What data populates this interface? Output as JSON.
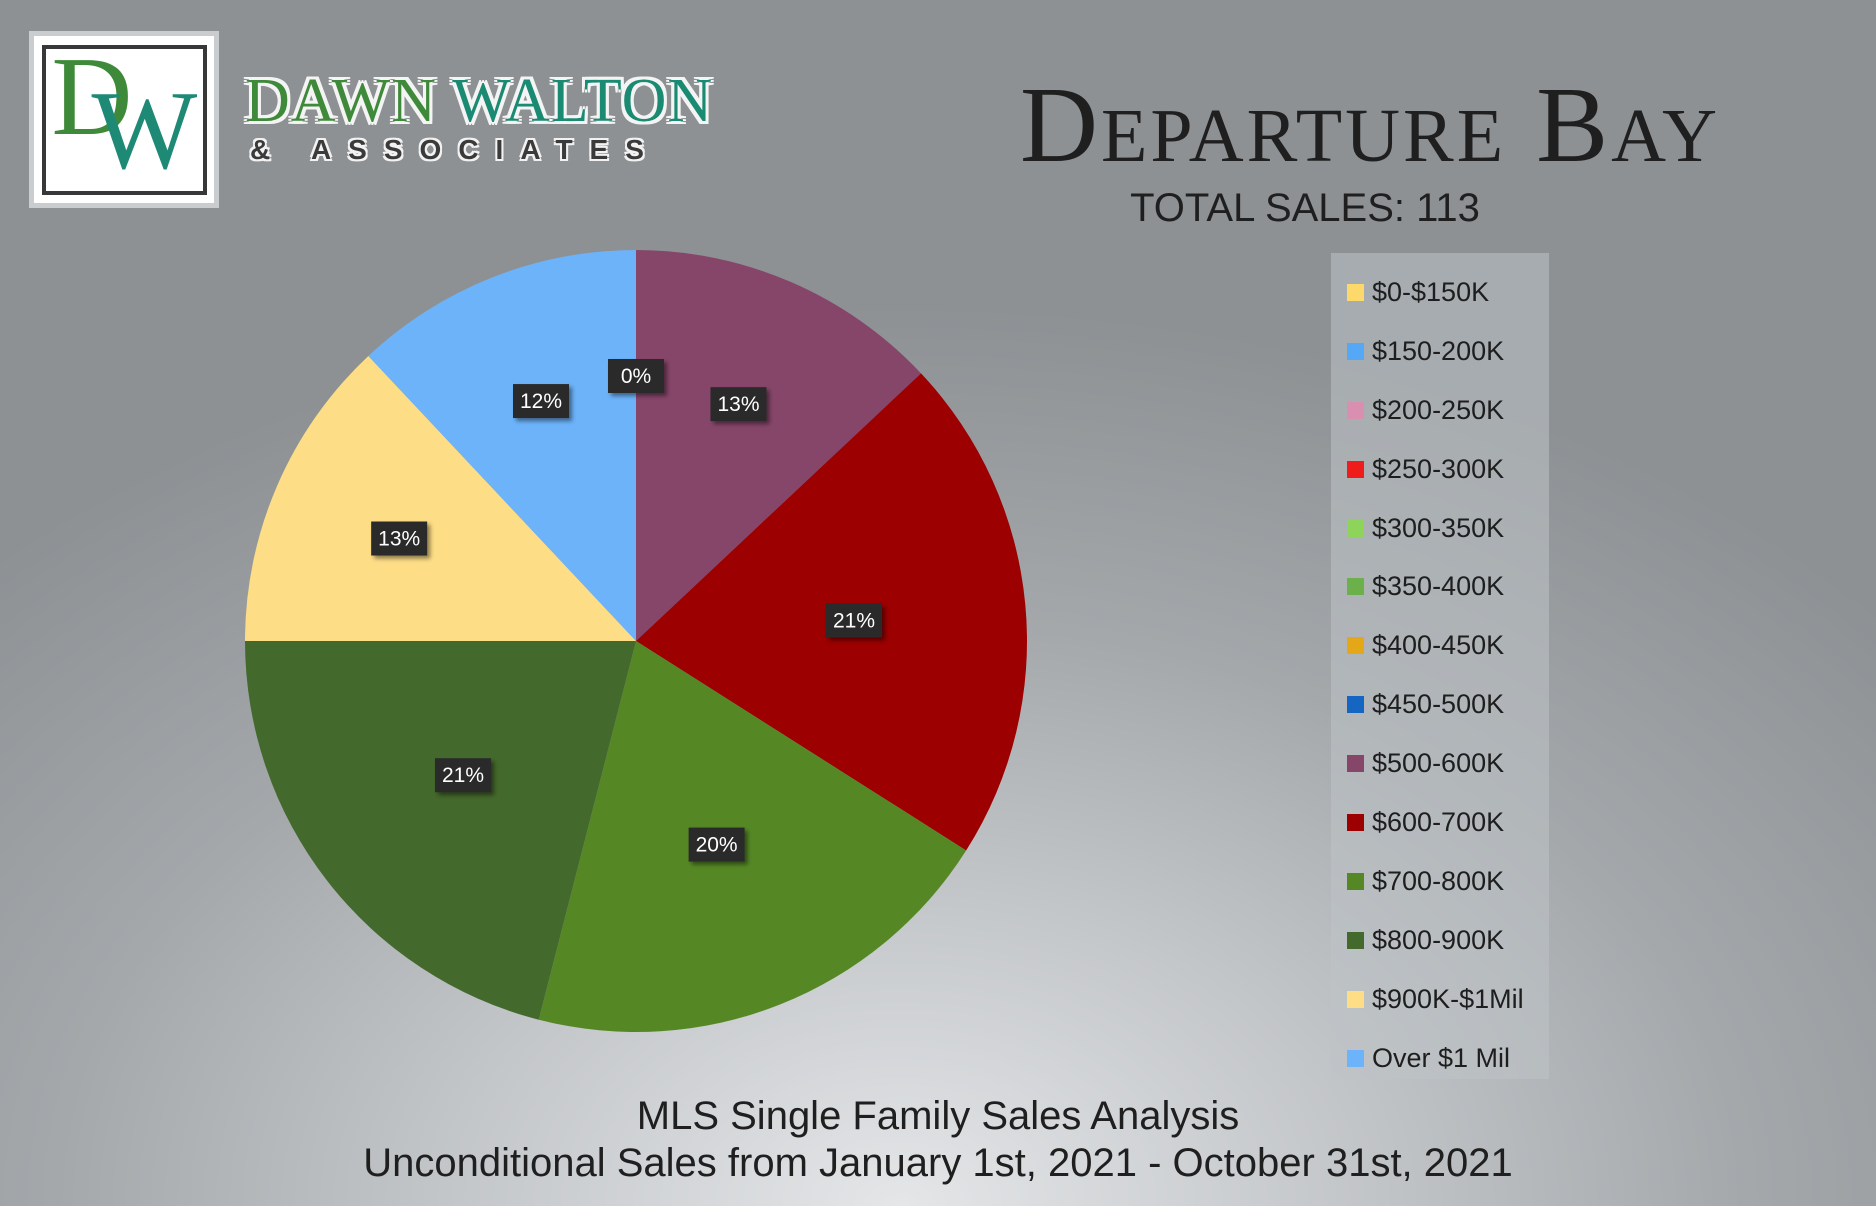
{
  "brand": {
    "logo_monogram_d": "D",
    "logo_monogram_w": "W",
    "name_first": "DAWN",
    "name_last": "WALTON",
    "sub": "& ASSOCIATES"
  },
  "colors": {
    "brand_green": "#3f8a3a",
    "brand_teal": "#1a8a72",
    "label_box": "#2b2b2b"
  },
  "chart_data": {
    "type": "pie",
    "title": "Departure Bay",
    "subtitle": "TOTAL SALES: 113",
    "legend_position": "right",
    "categories": [
      "$0-$150K",
      "$150-200K",
      "$200-250K",
      "$250-300K",
      "$300-350K",
      "$350-400K",
      "$400-450K",
      "$450-500K",
      "$500-600K",
      "$600-700K",
      "$700-800K",
      "$800-900K",
      "$900K-$1Mil",
      "Over $1 Mil"
    ],
    "colors": [
      "#fcd96a",
      "#55a8f5",
      "#d98fb0",
      "#ef1c1c",
      "#8fd45a",
      "#6bb04a",
      "#e3a717",
      "#1566c2",
      "#86466a",
      "#9c0000",
      "#558825",
      "#44692c",
      "#fddd85",
      "#6cb3fa"
    ],
    "values": [
      0,
      0,
      0,
      0,
      0,
      0,
      0,
      0,
      13,
      21,
      20,
      21,
      13,
      12
    ],
    "labels": [
      "0%",
      "0%",
      "0%",
      "0%",
      "0%",
      "0%",
      "0%",
      "0%",
      "13%",
      "21%",
      "20%",
      "21%",
      "13%",
      "12%"
    ],
    "visible_zero_label": "0%"
  },
  "footer": {
    "line1": "MLS Single Family Sales Analysis",
    "line2": "Unconditional Sales from January 1st, 2021 - October 31st, 2021"
  }
}
